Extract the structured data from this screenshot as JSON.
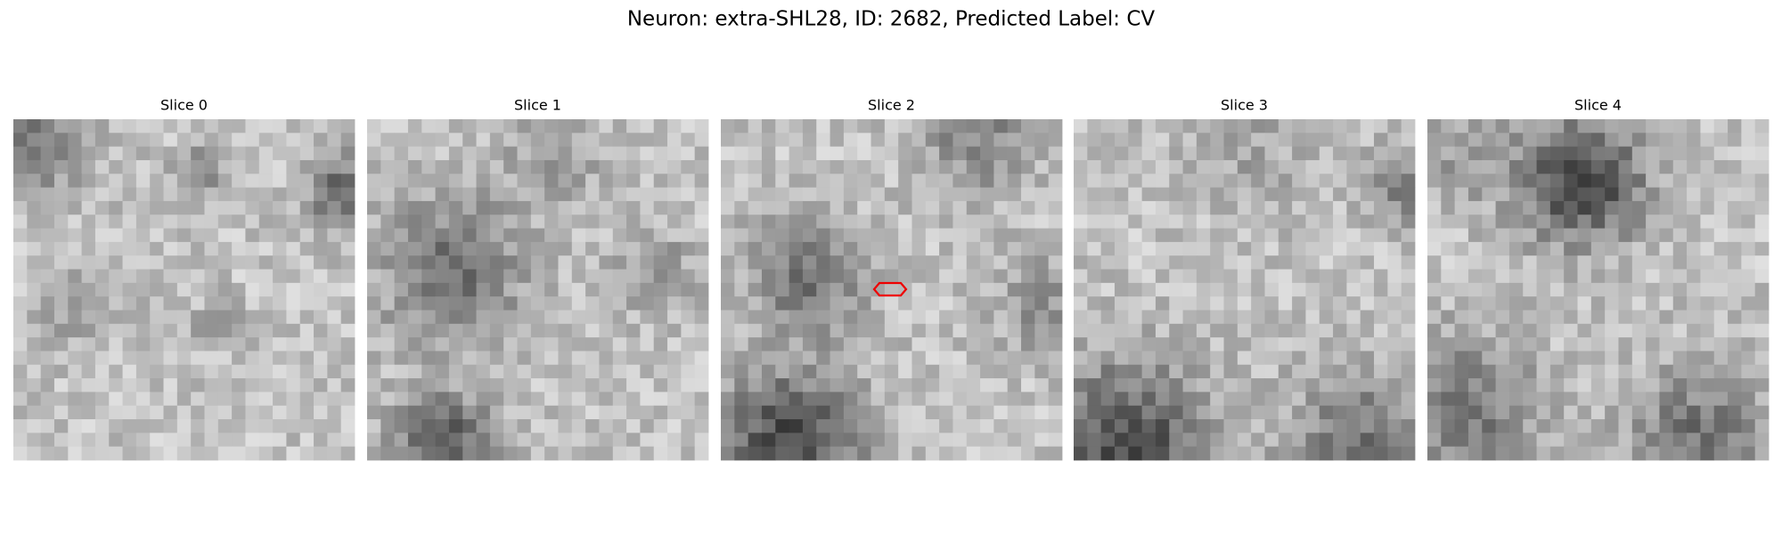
{
  "header": {
    "title": "Neuron: extra-SHL28, ID: 2682, Predicted Label: CV"
  },
  "panels": [
    {
      "title": "Slice 0"
    },
    {
      "title": "Slice 1"
    },
    {
      "title": "Slice 2"
    },
    {
      "title": "Slice 3"
    },
    {
      "title": "Slice 4"
    }
  ]
}
